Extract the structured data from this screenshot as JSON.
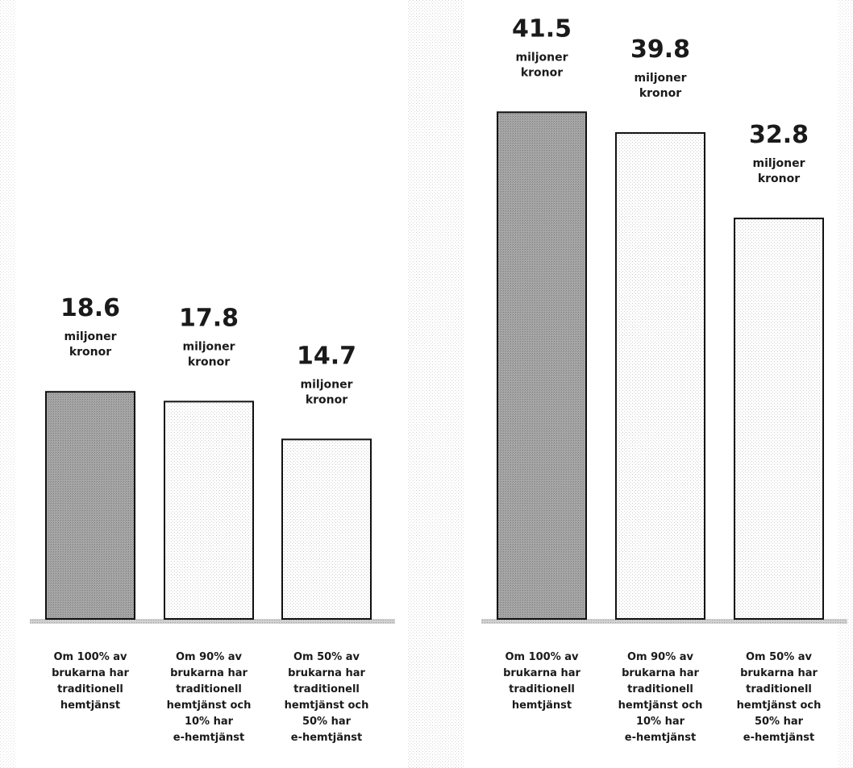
{
  "chart_data": [
    {
      "type": "bar",
      "categories": [
        [
          "Om 100% av",
          "brukarna har",
          "traditionell",
          "hemtjänst"
        ],
        [
          "Om 90% av",
          "brukarna har",
          "traditionell",
          "hemtjänst och",
          "10% har",
          "e-hemtjänst"
        ],
        [
          "Om 50% av",
          "brukarna har",
          "traditionell",
          "hemtjänst och",
          "50% har",
          "e-hemtjänst"
        ]
      ],
      "values": [
        18.6,
        17.8,
        14.7
      ],
      "value_labels": [
        "18.6",
        "17.8",
        "14.7"
      ],
      "unit_label": [
        "miljoner",
        "kronor"
      ],
      "ylim": [
        0,
        45
      ],
      "grid": false,
      "colors": [
        "#9a9a9a",
        "#ffffff",
        "#ffffff"
      ]
    },
    {
      "type": "bar",
      "categories": [
        [
          "Om 100% av",
          "brukarna har",
          "traditionell",
          "hemtjänst"
        ],
        [
          "Om 90% av",
          "brukarna har",
          "traditionell",
          "hemtjänst och",
          "10% har",
          "e-hemtjänst"
        ],
        [
          "Om 50% av",
          "brukarna har",
          "traditionell",
          "hemtjänst och",
          "50% har",
          "e-hemtjänst"
        ]
      ],
      "values": [
        41.5,
        39.8,
        32.8
      ],
      "value_labels": [
        "41.5",
        "39.8",
        "32.8"
      ],
      "unit_label": [
        "miljoner",
        "kronor"
      ],
      "ylim": [
        0,
        45
      ],
      "grid": false,
      "colors": [
        "#9a9a9a",
        "#ffffff",
        "#ffffff"
      ]
    }
  ]
}
